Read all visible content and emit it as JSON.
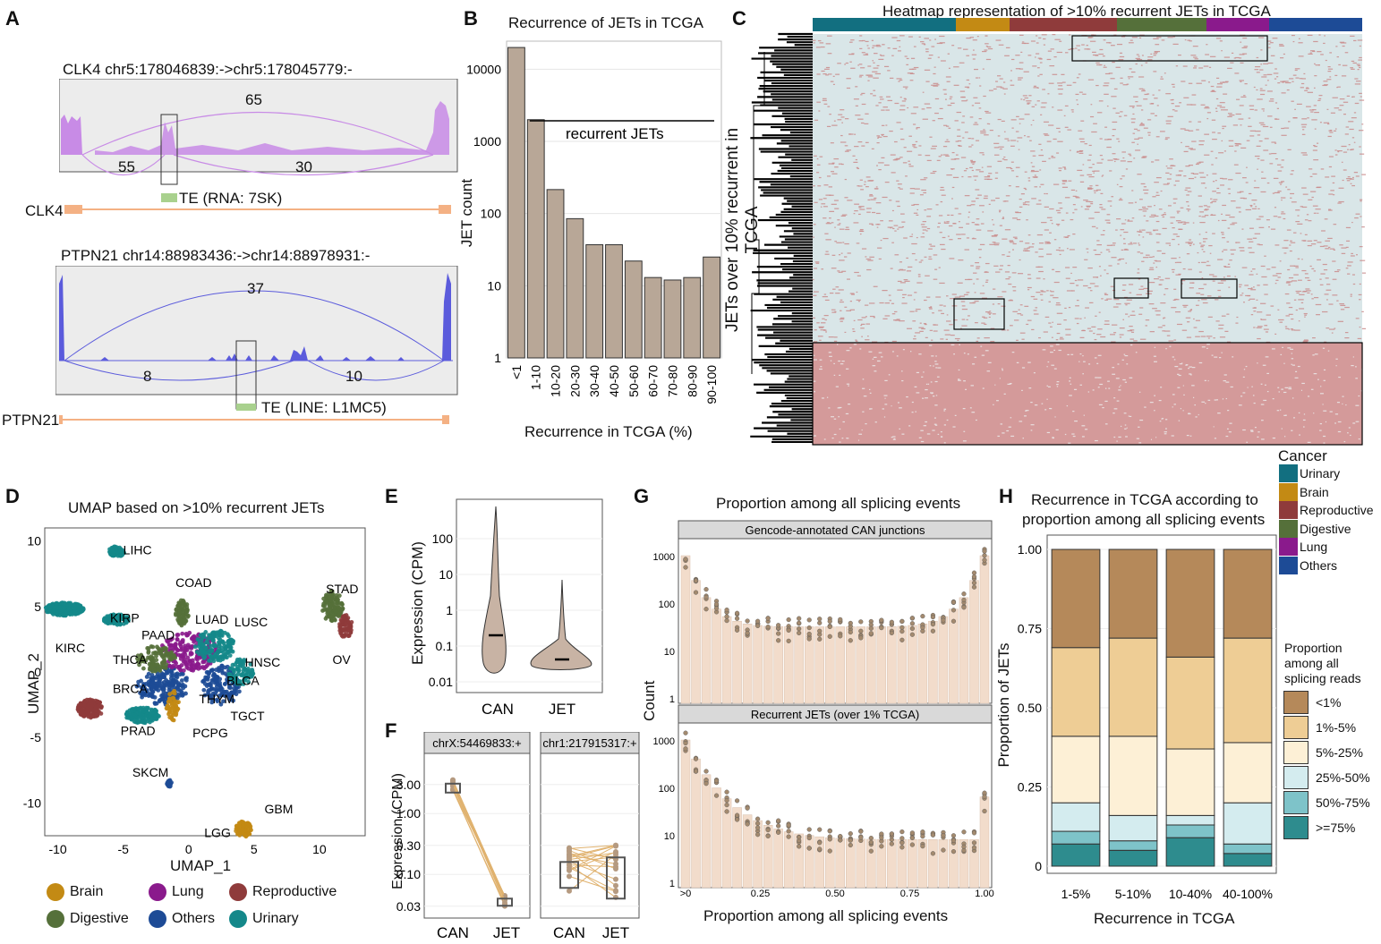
{
  "panels": {
    "A": {
      "label": "A",
      "top": {
        "title": "CLK4 chr5:178046839:->chr5:178045779:-",
        "arc_main": "65",
        "arc_left": "55",
        "arc_right": "30",
        "te": "TE (RNA: 7SK)",
        "gene": "CLK4",
        "color": "#c88be6"
      },
      "bottom": {
        "title": "PTPN21 chr14:88983436:->chr14:88978931:-",
        "arc_main": "37",
        "arc_left": "8",
        "arc_right": "10",
        "te": "TE (LINE: L1MC5)",
        "gene": "PTPN21",
        "color": "#5b5bdc"
      }
    },
    "B": {
      "label": "B"
    },
    "C": {
      "label": "C",
      "title": "Heatmap representation of >10% recurrent JETs in TCGA",
      "ylabel": "JETs over 10% recurrent in TCGA",
      "cancer_legend": {
        "title": "Cancer",
        "items": [
          {
            "name": "Urinary",
            "color": "#126f80"
          },
          {
            "name": "Brain",
            "color": "#c38a14"
          },
          {
            "name": "Reproductive",
            "color": "#8f3b3b"
          },
          {
            "name": "Digestive",
            "color": "#55703a"
          },
          {
            "name": "Lung",
            "color": "#8a1a8c"
          },
          {
            "name": "Others",
            "color": "#1d4b96"
          }
        ]
      }
    },
    "D": {
      "label": "D",
      "title": "UMAP based on >10% recurrent JETs",
      "xlabel": "UMAP_1",
      "ylabel": "UMAP_2",
      "xticks": [
        "-10",
        "-5",
        "0",
        "5",
        "10"
      ],
      "yticks": [
        "10",
        "5",
        "0",
        "-5",
        "-10"
      ],
      "clusters": [
        "LIHC",
        "COAD",
        "STAD",
        "KIRP",
        "LUAD",
        "LUSC",
        "PAAD",
        "KIRC",
        "THCA",
        "HNSC",
        "OV",
        "BRCA",
        "BLCA",
        "THYM",
        "TGCT",
        "PRAD",
        "PCPG",
        "SKCM",
        "GBM",
        "LGG"
      ],
      "legend": [
        {
          "name": "Brain",
          "color": "#c38a14"
        },
        {
          "name": "Lung",
          "color": "#8a1a8c"
        },
        {
          "name": "Reproductive",
          "color": "#8f3b3b"
        },
        {
          "name": "Digestive",
          "color": "#55703a"
        },
        {
          "name": "Others",
          "color": "#1d4b96"
        },
        {
          "name": "Urinary",
          "color": "#14888a"
        }
      ]
    },
    "E": {
      "label": "E",
      "ylabel": "Expression (CPM)",
      "yticks": [
        "100",
        "10",
        "1",
        "0.1",
        "0.01"
      ],
      "groups": [
        "CAN",
        "JET"
      ]
    },
    "F": {
      "label": "F",
      "ylabel": "Expression (CPM)",
      "yticks": [
        "3.00",
        "1.00",
        "0.30",
        "0.10",
        "0.03"
      ],
      "facets": [
        {
          "title": "chrX:54469833:+",
          "groups": [
            "CAN",
            "JET"
          ]
        },
        {
          "title": "chr1:217915317:+",
          "groups": [
            "CAN",
            "JET"
          ]
        }
      ]
    },
    "G": {
      "label": "G",
      "title": "Proportion among all splicing events",
      "xlabel": "Proportion among all splicing events",
      "ylabel": "Count",
      "facet_top": "Gencode-annotated CAN junctions",
      "facet_bottom": "Recurrent JETs (over 1% TCGA)",
      "yticks": [
        "1000",
        "100",
        "10",
        "1"
      ],
      "xticks": [
        ">0",
        "0.25",
        "0.50",
        "0.75",
        "1.00"
      ]
    },
    "H": {
      "label": "H",
      "title_line1": "Recurrence in TCGA according to",
      "title_line2": "proportion among all splicing events",
      "xlabel": "Recurrence in TCGA",
      "ylabel": "Proportion of JETs",
      "yticks": [
        "1.00",
        "0.75",
        "0.50",
        "0.25",
        "0"
      ],
      "legend_title_lines": [
        "Proportion",
        "among all",
        "splicing reads"
      ],
      "legend": [
        {
          "name": "<1%",
          "color": "#b5895a"
        },
        {
          "name": "1%-5%",
          "color": "#eecd95"
        },
        {
          "name": "5%-25%",
          "color": "#fdf0d6"
        },
        {
          "name": "25%-50%",
          "color": "#d4ecef"
        },
        {
          "name": "50%-75%",
          "color": "#7ec3c9"
        },
        {
          "name": ">=75%",
          "color": "#2e8c8e"
        }
      ]
    }
  },
  "chart_data": [
    {
      "type": "bar",
      "title": "Recurrence of JETs in TCGA",
      "xlabel": "Recurrence in TCGA (%)",
      "ylabel": "JET count",
      "yscale": "log",
      "ylim": [
        1,
        20000
      ],
      "yticks": [
        "10000",
        "1000",
        "100",
        "10",
        "1"
      ],
      "categories": [
        "<1",
        "1-10",
        "10-20",
        "20-30",
        "30-40",
        "40-50",
        "50-60",
        "60-70",
        "70-80",
        "80-90",
        "90-100"
      ],
      "values": [
        20000,
        2000,
        215,
        85,
        37,
        37,
        22,
        13,
        12,
        13,
        25
      ],
      "annotation": "recurrent JETs",
      "bar_color": "#b8a797"
    },
    {
      "type": "bar",
      "title": "Recurrence in TCGA according to proportion among all splicing events",
      "xlabel": "Recurrence in TCGA",
      "ylabel": "Proportion of JETs",
      "stacked": true,
      "ylim": [
        0,
        1
      ],
      "categories": [
        "1-5%",
        "5-10%",
        "10-40%",
        "40-100%"
      ],
      "series": [
        {
          "name": ">=75%",
          "values": [
            0.07,
            0.05,
            0.09,
            0.04
          ]
        },
        {
          "name": "50%-75%",
          "values": [
            0.04,
            0.03,
            0.04,
            0.03
          ]
        },
        {
          "name": "25%-50%",
          "values": [
            0.09,
            0.08,
            0.03,
            0.13
          ]
        },
        {
          "name": "5%-25%",
          "values": [
            0.21,
            0.25,
            0.21,
            0.19
          ]
        },
        {
          "name": "1%-5%",
          "values": [
            0.28,
            0.31,
            0.29,
            0.33
          ]
        },
        {
          "name": "<1%",
          "values": [
            0.31,
            0.28,
            0.34,
            0.28
          ]
        }
      ]
    }
  ]
}
